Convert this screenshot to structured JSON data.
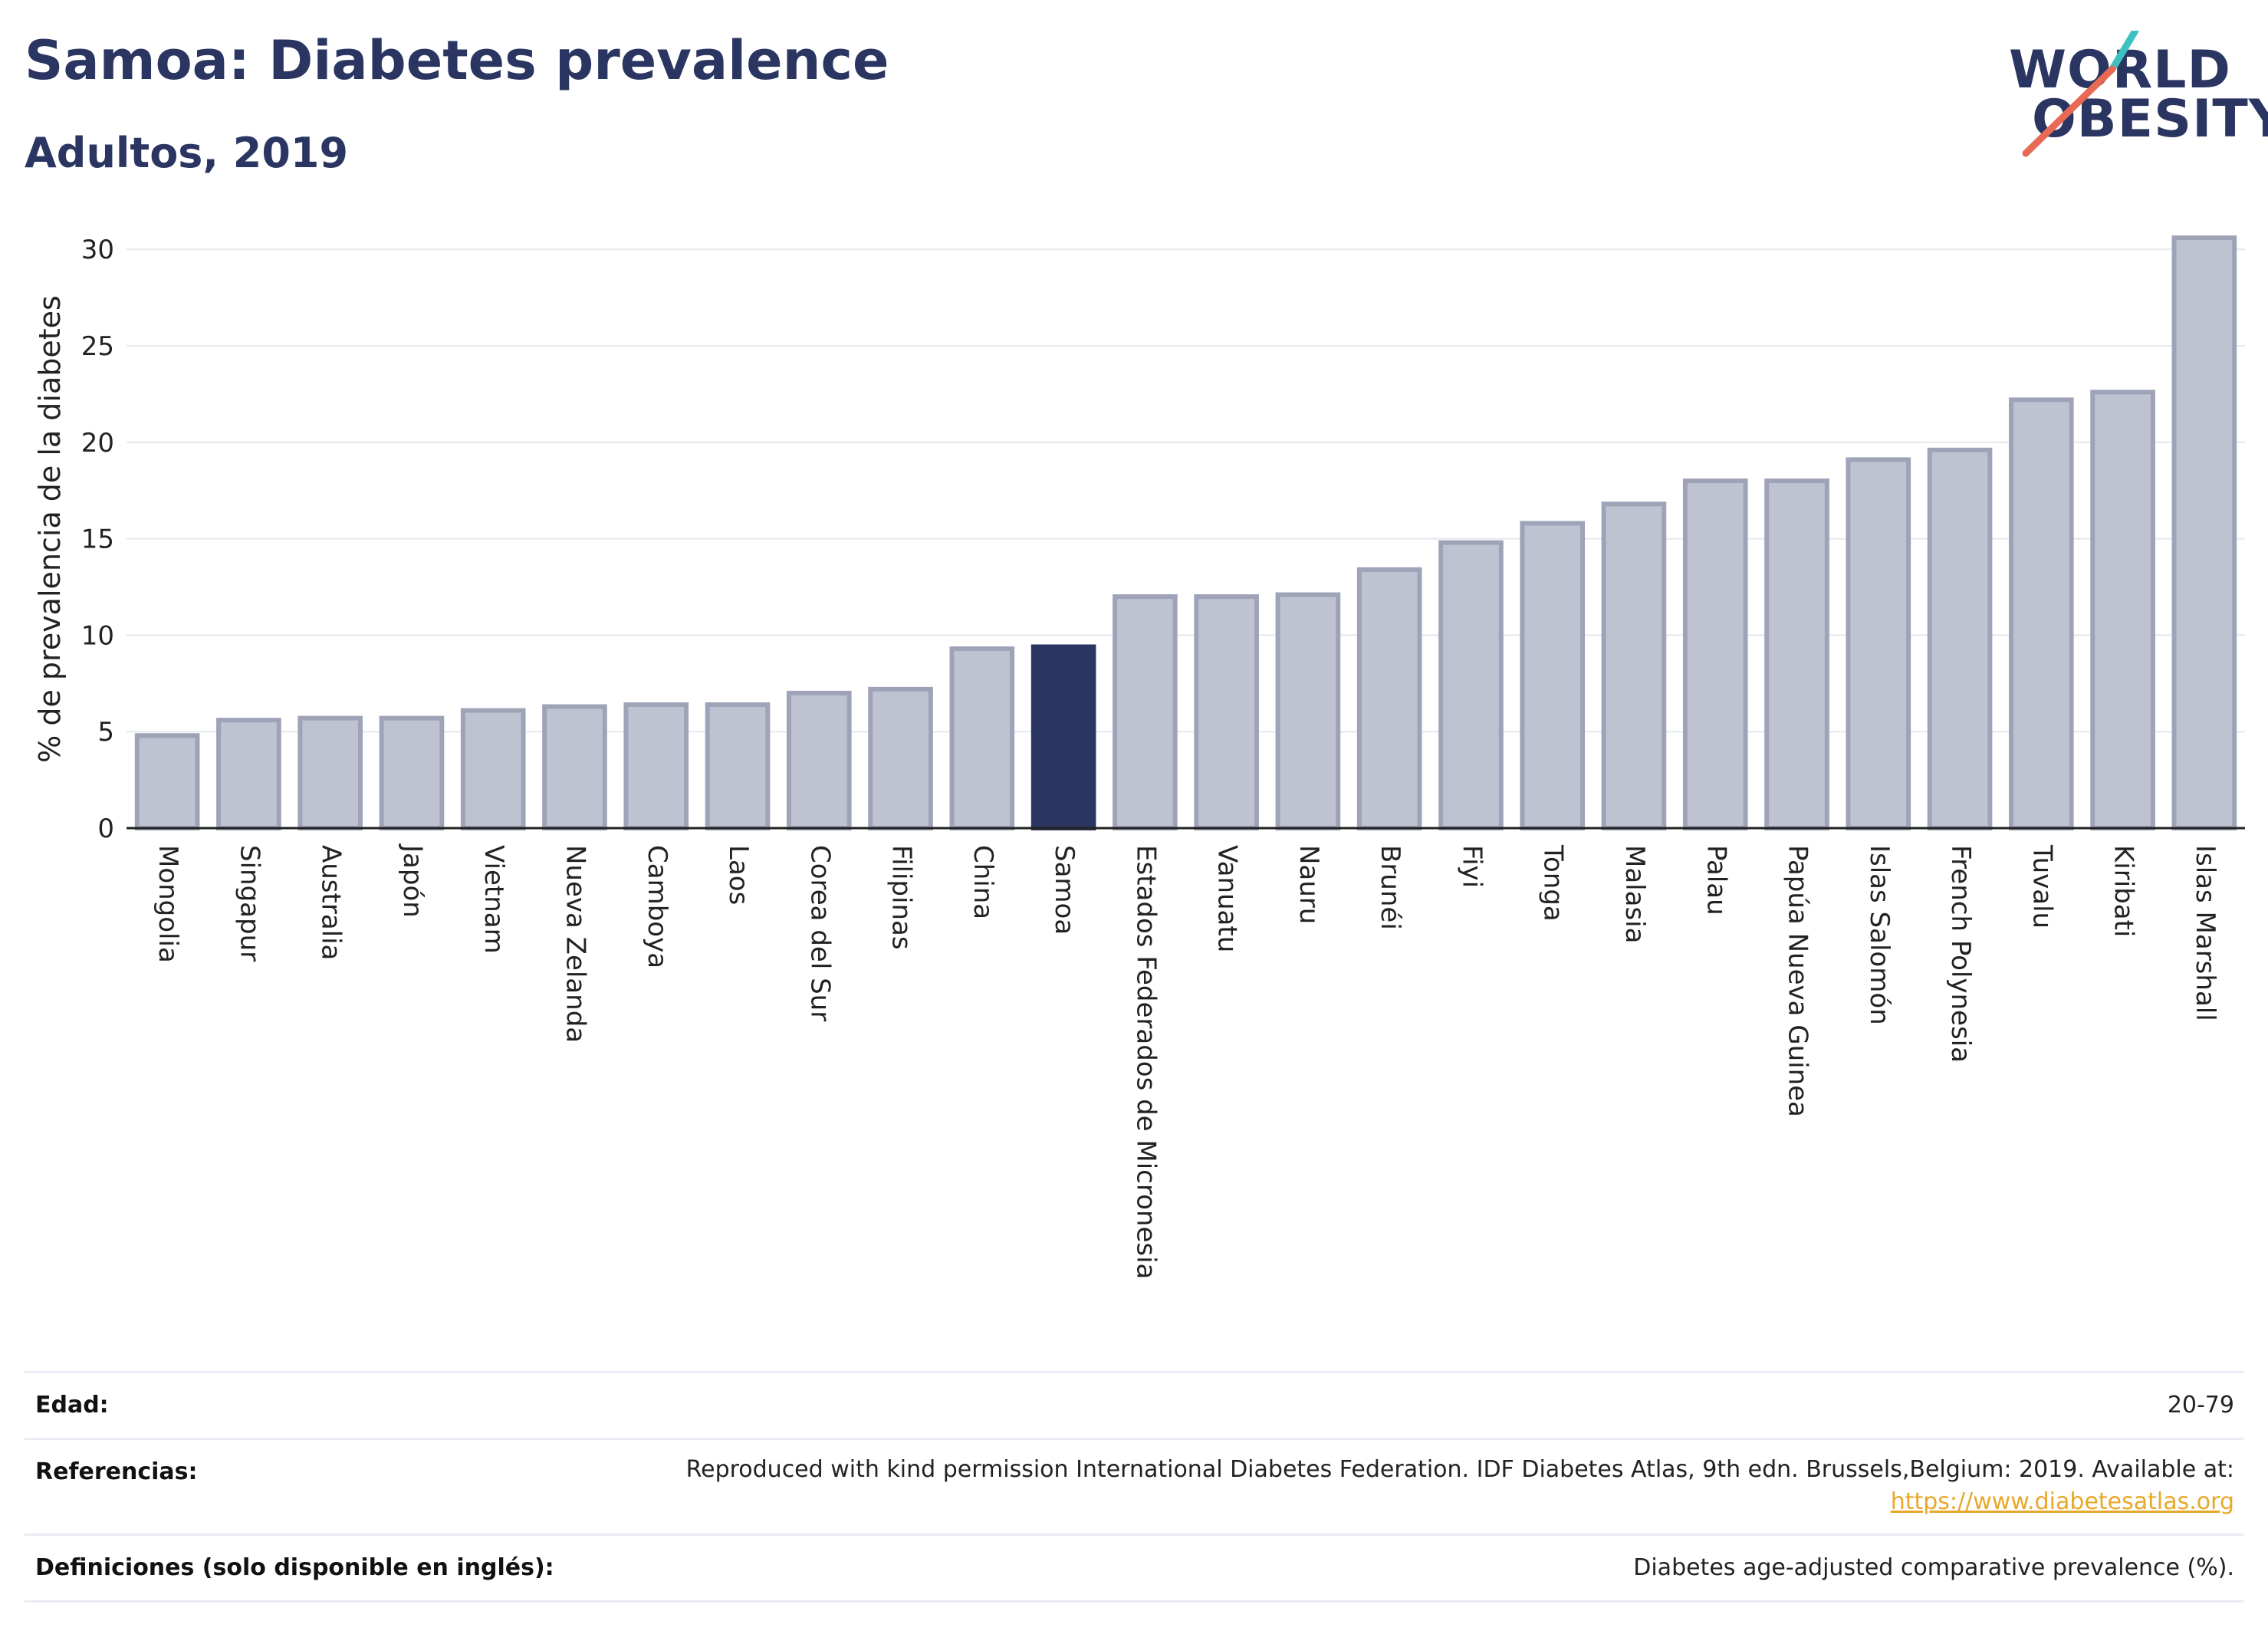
{
  "header": {
    "title": "Samoa: Diabetes prevalence",
    "subtitle": "Adultos, 2019",
    "logo_line1": "WORLD",
    "logo_line2": "OBESITY"
  },
  "chart_data": {
    "type": "bar",
    "title": "Samoa: Diabetes prevalence",
    "subtitle": "Adultos, 2019",
    "xlabel": "",
    "ylabel": "% de prevalencia de la diabetes",
    "ylim": [
      0,
      31
    ],
    "yticks": [
      0,
      5,
      10,
      15,
      20,
      25,
      30
    ],
    "grid": true,
    "highlight": "Samoa",
    "colors": {
      "bar": "#bfc3d1",
      "bar_edge": "#9ea3b8",
      "highlight": "#2b3561",
      "grid": "#e6e8ee"
    },
    "categories": [
      "Mongolia",
      "Singapur",
      "Australia",
      "Japón",
      "Vietnam",
      "Nueva Zelanda",
      "Camboya",
      "Laos",
      "Corea del Sur",
      "Filipinas",
      "China",
      "Samoa",
      "Estados Federados de Micronesia",
      "Vanuatu",
      "Nauru",
      "Brunéi",
      "Fiyi",
      "Tonga",
      "Malasia",
      "Palau",
      "Papúa Nueva Guinea",
      "Islas Salomón",
      "French Polynesia",
      "Tuvalu",
      "Kiribati",
      "Islas Marshall"
    ],
    "values": [
      4.8,
      5.6,
      5.7,
      5.7,
      6.1,
      6.3,
      6.4,
      6.4,
      7.0,
      7.2,
      9.3,
      9.4,
      12.0,
      12.0,
      12.1,
      13.4,
      14.8,
      15.8,
      16.8,
      18.0,
      18.0,
      19.1,
      19.6,
      22.2,
      22.6,
      30.6
    ]
  },
  "info_table": [
    {
      "label": "Edad:",
      "value": "20-79",
      "link": ""
    },
    {
      "label": "Referencias:",
      "value": "Reproduced with kind permission International Diabetes Federation. IDF Diabetes Atlas, 9th edn. Brussels,Belgium: 2019. Available at:",
      "link": "https://www.diabetesatlas.org"
    },
    {
      "label": "Definiciones (solo disponible en inglés):",
      "value": "Diabetes age-adjusted comparative prevalence (%).",
      "link": ""
    }
  ]
}
